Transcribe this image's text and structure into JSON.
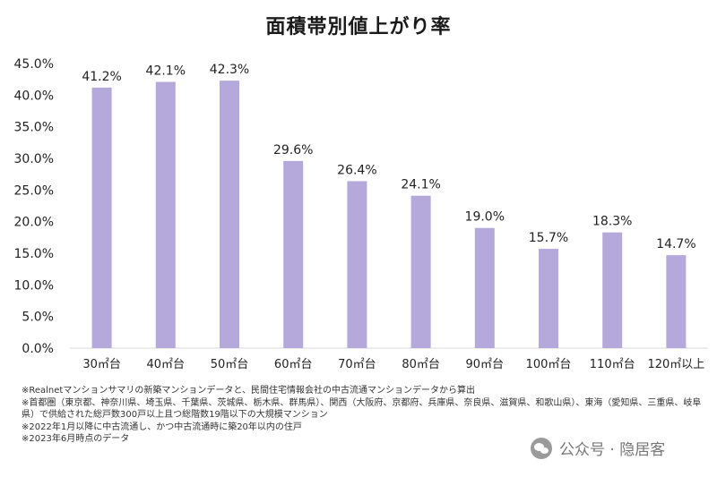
{
  "chart_data": {
    "type": "bar",
    "title": "面積帯別値上がり率",
    "categories": [
      "30㎡台",
      "40㎡台",
      "50㎡台",
      "60㎡台",
      "70㎡台",
      "80㎡台",
      "90㎡台",
      "100㎡台",
      "110㎡台",
      "120㎡以上"
    ],
    "values": [
      41.2,
      42.1,
      42.3,
      29.6,
      26.4,
      24.1,
      19.0,
      15.7,
      18.3,
      14.7
    ],
    "value_labels": [
      "41.2%",
      "42.1%",
      "42.3%",
      "29.6%",
      "26.4%",
      "24.1%",
      "19.0%",
      "15.7%",
      "18.3%",
      "14.7%"
    ],
    "y_ticks": [
      "0.0%",
      "5.0%",
      "10.0%",
      "15.0%",
      "20.0%",
      "25.0%",
      "30.0%",
      "35.0%",
      "40.0%",
      "45.0%"
    ],
    "ylim": [
      0,
      45
    ],
    "bar_color": "#b5a9dc",
    "grid": false,
    "xlabel": "",
    "ylabel": ""
  },
  "notes": [
    "※Realnetマンションサマリの新築マンションデータと、民間住宅情報会社の中古流通マンションデータから算出",
    "※首都圏（東京都、神奈川県、埼玉県、千葉県、茨城県、栃木県、群馬県）、関西（大阪府、京都府、兵庫県、奈良県、滋賀県、和歌山県）、東海（愛知県、三重県、岐阜",
    "県）で供給された総戸数300戸以上且つ総階数19階以下の大規模マンション",
    "※2022年1月以降に中古流通し、かつ中古流通時に築20年以内の住戸",
    "※2023年6月時点のデータ"
  ],
  "watermark": {
    "icon": "wechat-icon",
    "text": "公众号 · 隐居客"
  }
}
